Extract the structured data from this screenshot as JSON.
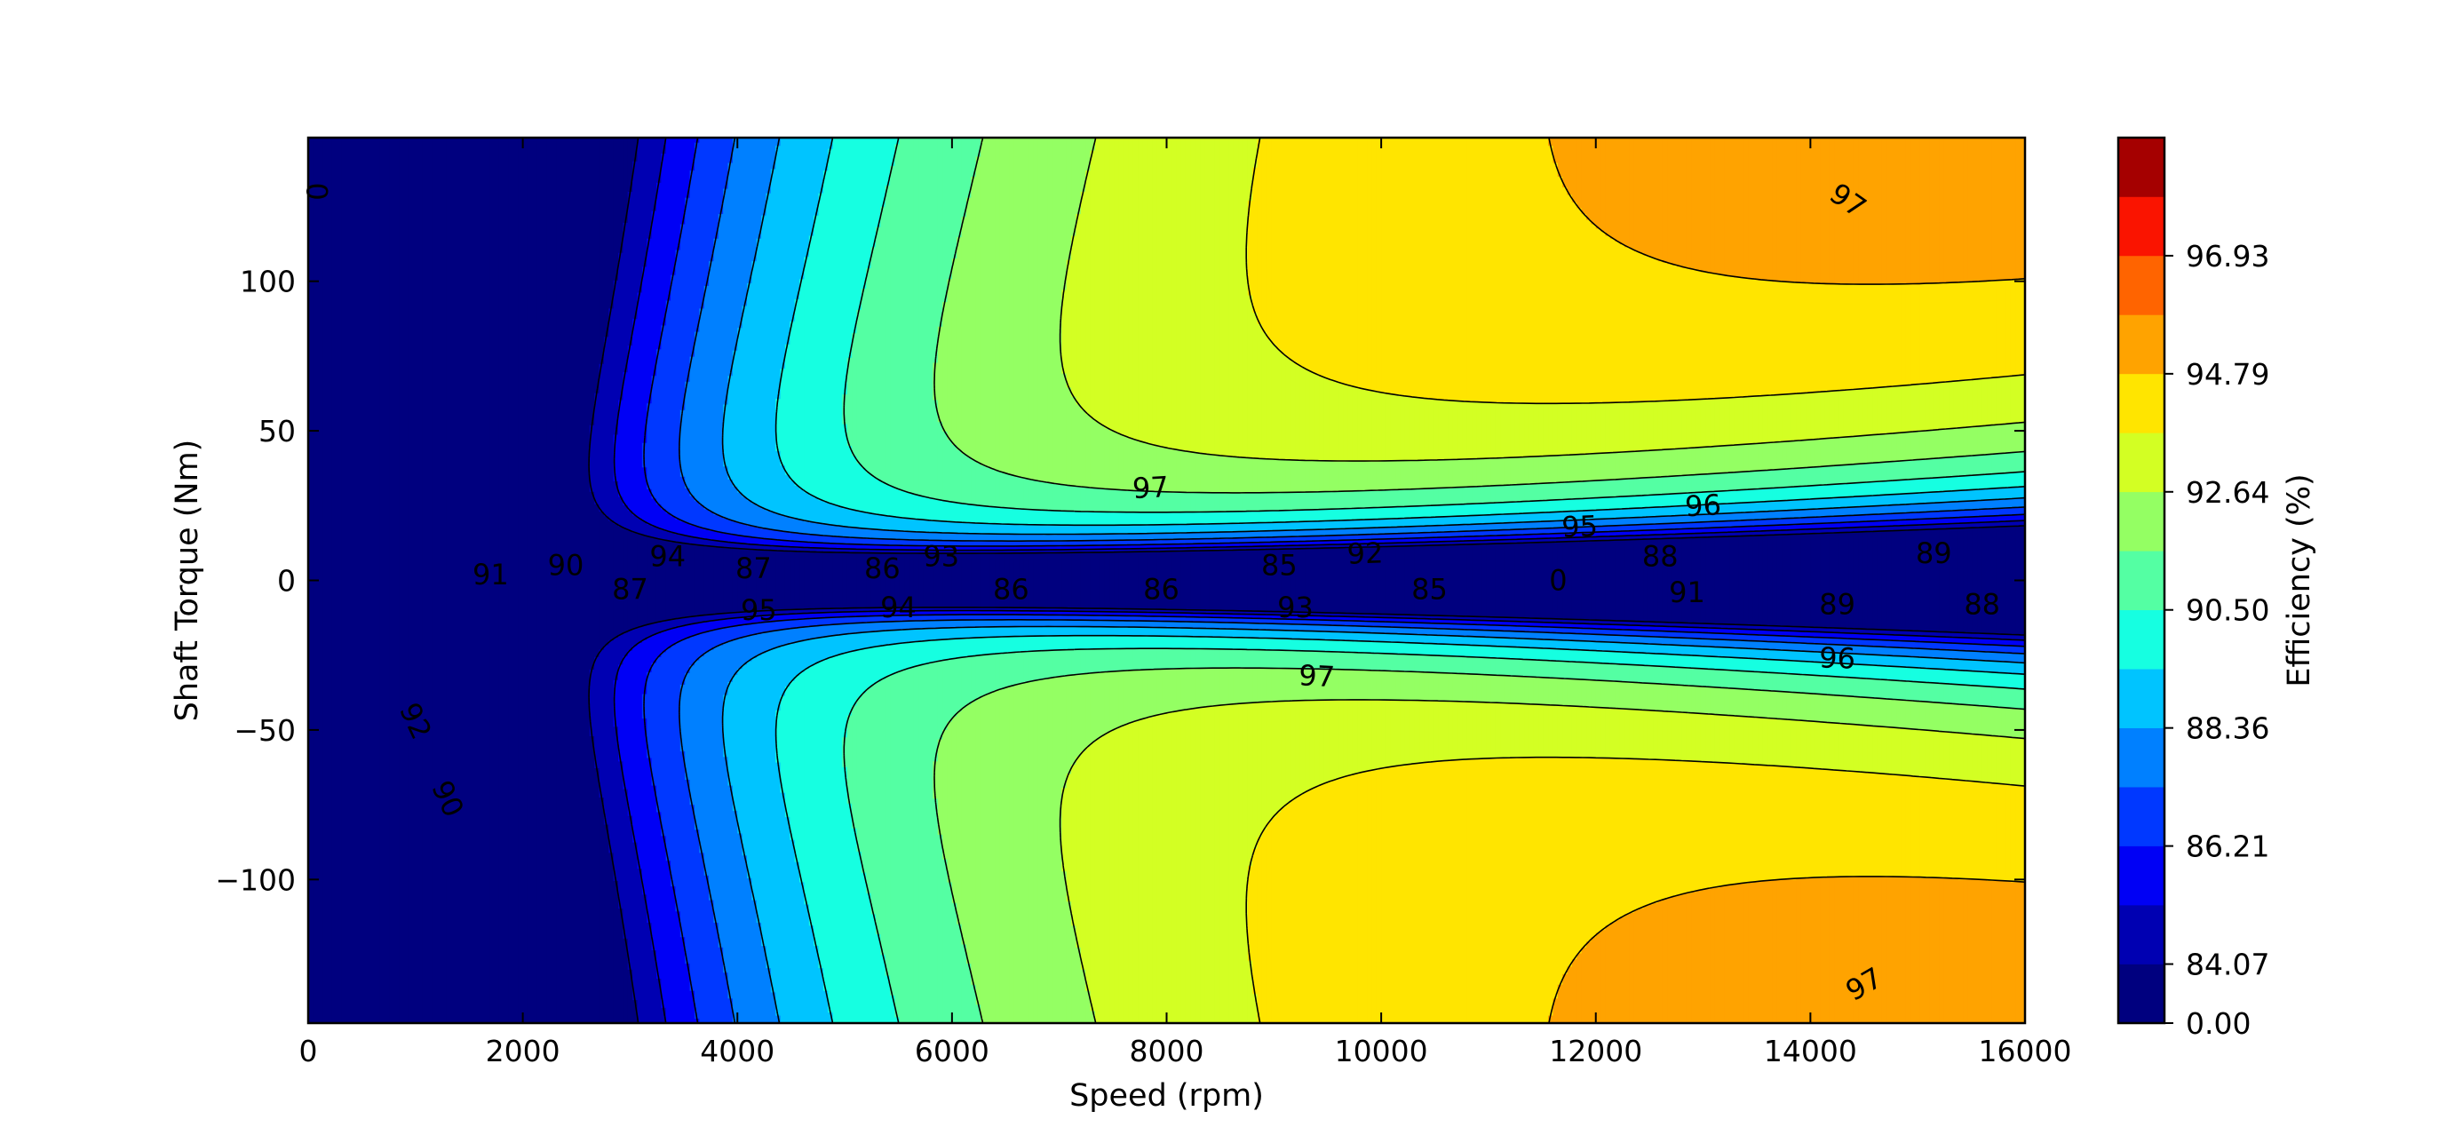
{
  "chart_data": {
    "type": "heatmap",
    "subtype": "filled-contour",
    "xlabel": "Speed  (rpm)",
    "ylabel": "Shaft Torque  (Nm)",
    "xlim": [
      0,
      16000
    ],
    "ylim": [
      -148,
      148
    ],
    "x_ticks": [
      0,
      2000,
      4000,
      6000,
      8000,
      10000,
      12000,
      14000,
      16000
    ],
    "y_ticks": [
      -100,
      -50,
      0,
      50,
      100
    ],
    "x_tick_labels": [
      "0",
      "2000",
      "4000",
      "6000",
      "8000",
      "10000",
      "12000",
      "14000",
      "16000"
    ],
    "y_tick_labels": [
      "−100",
      "−50",
      "0",
      "50",
      "100"
    ],
    "grid": false,
    "colorbar": {
      "label": "Efficiency (%)",
      "tick_labels": [
        "96.93",
        "94.79",
        "92.64",
        "90.50",
        "88.36",
        "86.21",
        "84.07",
        "0.00"
      ],
      "levels": [
        0.0,
        83.0,
        84.07,
        85.14,
        86.21,
        87.29,
        88.36,
        89.43,
        90.5,
        91.57,
        92.64,
        93.71,
        94.79,
        95.86,
        96.93,
        98.0
      ],
      "colors": [
        "#00007f",
        "#0000b2",
        "#0000f5",
        "#0038ff",
        "#0080ff",
        "#00c4ff",
        "#16ffe1",
        "#54ffa3",
        "#94ff63",
        "#d3ff23",
        "#ffe500",
        "#ffa300",
        "#ff6400",
        "#fa1400",
        "#a50000"
      ]
    },
    "contour_labels": [
      {
        "text": "97",
        "speed": 7850,
        "torque": 31,
        "angle": -3
      },
      {
        "text": "97",
        "speed": 9400,
        "torque": -32,
        "angle": 3
      },
      {
        "text": "97",
        "speed": 14350,
        "torque": 127,
        "angle": 35
      },
      {
        "text": "97",
        "speed": 14500,
        "torque": -135,
        "angle": -30
      },
      {
        "text": "96",
        "speed": 13000,
        "torque": 25,
        "angle": -3
      },
      {
        "text": "96",
        "speed": 14250,
        "torque": -26,
        "angle": 2
      },
      {
        "text": "95",
        "speed": 11850,
        "torque": 18,
        "angle": -2
      },
      {
        "text": "95",
        "speed": 4200,
        "torque": -10,
        "angle": 0
      },
      {
        "text": "94",
        "speed": 3350,
        "torque": 8,
        "angle": 0
      },
      {
        "text": "94",
        "speed": 5500,
        "torque": -9,
        "angle": 0
      },
      {
        "text": "93",
        "speed": 5900,
        "torque": 8,
        "angle": 0
      },
      {
        "text": "93",
        "speed": 9200,
        "torque": -9,
        "angle": 0
      },
      {
        "text": "92",
        "speed": 9850,
        "torque": 9,
        "angle": -2
      },
      {
        "text": "92",
        "speed": 1000,
        "torque": -47,
        "angle": 65
      },
      {
        "text": "91",
        "speed": 1700,
        "torque": 2,
        "angle": 0
      },
      {
        "text": "91",
        "speed": 12850,
        "torque": -4,
        "angle": 0
      },
      {
        "text": "90",
        "speed": 2400,
        "torque": 5,
        "angle": 0
      },
      {
        "text": "90",
        "speed": 1300,
        "torque": -73,
        "angle": 65
      },
      {
        "text": "89",
        "speed": 15150,
        "torque": 9,
        "angle": 0
      },
      {
        "text": "89",
        "speed": 14250,
        "torque": -8,
        "angle": 0
      },
      {
        "text": "88",
        "speed": 12600,
        "torque": 8,
        "angle": 0
      },
      {
        "text": "88",
        "speed": 15600,
        "torque": -8,
        "angle": 0
      },
      {
        "text": "87",
        "speed": 4150,
        "torque": 4,
        "angle": 0
      },
      {
        "text": "87",
        "speed": 3000,
        "torque": -3,
        "angle": 0
      },
      {
        "text": "86",
        "speed": 5350,
        "torque": 4,
        "angle": 0
      },
      {
        "text": "86",
        "speed": 6550,
        "torque": -3,
        "angle": 0
      },
      {
        "text": "86",
        "speed": 7950,
        "torque": -3,
        "angle": 0
      },
      {
        "text": "85",
        "speed": 9050,
        "torque": 5,
        "angle": 0
      },
      {
        "text": "85",
        "speed": 10450,
        "torque": -3,
        "angle": 0
      },
      {
        "text": "0",
        "speed": 11650,
        "torque": 0,
        "angle": 0
      },
      {
        "text": "0",
        "speed": 80,
        "torque": 130,
        "angle": 90
      }
    ]
  }
}
